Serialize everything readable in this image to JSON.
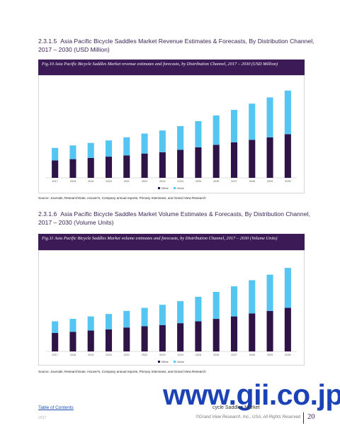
{
  "section1": {
    "number": "2.3.1.5",
    "title": "Asia Pacific Bicycle Saddles Market Revenue Estimates & Forecasts, By Distribution Channel, 2017 – 2030 (USD Million)"
  },
  "figure1": {
    "caption": "Fig.10 Asia Pacific Bicycle Saddles Market revenue estimates and forecasts, by Distribution Channel, 2017 – 2030 (USD Million)",
    "source": "Source: Journals, ResearchGate, Hoover's, Company annual reports, Primary Interviews, and Grand View Research"
  },
  "section2": {
    "number": "2.3.1.6",
    "title": "Asia Pacific Bicycle Saddles Market Volume Estimates & Forecasts, By Distribution Channel, 2017 – 2030 (Volume Units)"
  },
  "figure2": {
    "caption": "Fig.11 Asia Pacific Bicycle Saddles Market volume estimates and forecasts, by Distribution Channel, 2017 – 2030 (Volume Units)",
    "source": "Source: Journals, ResearchGate, Hoover's, Company annual reports, Primary Interviews, and Grand View Research"
  },
  "colors": {
    "offline": "#2e1346",
    "online": "#55c5f2",
    "header": "#3b1a55"
  },
  "chart_data": [
    {
      "type": "bar",
      "stacked": true,
      "categories": [
        "2017",
        "2018",
        "2019",
        "2020",
        "2021",
        "2022",
        "2023",
        "2024",
        "2025",
        "2026",
        "2027",
        "2028",
        "2029",
        "2030"
      ],
      "series": [
        {
          "name": "Offline",
          "values": [
            28,
            30,
            32,
            34,
            36,
            39,
            41,
            45,
            49,
            53,
            57,
            61,
            65,
            70
          ]
        },
        {
          "name": "Online",
          "values": [
            20,
            22,
            24,
            26,
            29,
            32,
            35,
            38,
            42,
            47,
            52,
            58,
            64,
            70
          ]
        }
      ],
      "ylim": [
        0,
        150
      ],
      "legend": "bottom-center"
    },
    {
      "type": "bar",
      "stacked": true,
      "categories": [
        "2017",
        "2018",
        "2019",
        "2020",
        "2021",
        "2022",
        "2023",
        "2024",
        "2025",
        "2026",
        "2027",
        "2028",
        "2029",
        "2030"
      ],
      "series": [
        {
          "name": "Offline",
          "values": [
            30,
            32,
            34,
            36,
            39,
            41,
            43,
            46,
            49,
            53,
            57,
            62,
            66,
            71
          ]
        },
        {
          "name": "Online",
          "values": [
            19,
            21,
            23,
            25,
            27,
            30,
            33,
            36,
            40,
            44,
            49,
            54,
            59,
            65
          ]
        }
      ],
      "ylim": [
        0,
        150
      ],
      "legend": "bottom-center"
    }
  ],
  "footer": {
    "toc": "Table of Contents",
    "sub": "2017",
    "report_name": "cycle Saddles Market",
    "copyright": "©Grand View Research, Inc., USA, All Rights Reserved",
    "page": "20",
    "watermark": "www.gii.co.jp"
  }
}
